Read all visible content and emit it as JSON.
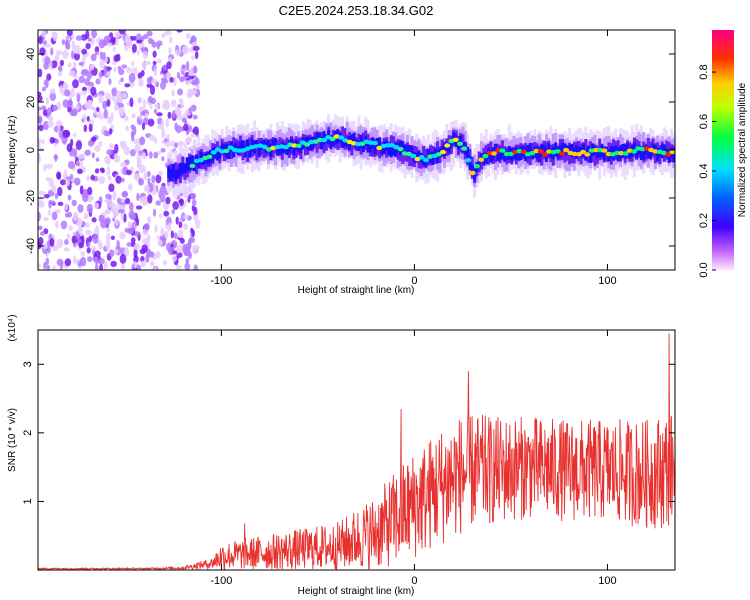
{
  "title": "C2E5.2024.253.18.34.G02",
  "chart_data": [
    {
      "type": "heatmap",
      "xlabel": "Height of straight line (km)",
      "ylabel": "Frequency (Hz)",
      "xlim": [
        -195,
        135
      ],
      "ylim": [
        -50,
        50
      ],
      "xticks": [
        -100,
        0,
        100
      ],
      "yticks": [
        -40,
        -20,
        0,
        20,
        40
      ],
      "colorbar": {
        "label": "Normalized spectral amplitude",
        "ticks": [
          0.0,
          0.2,
          0.4,
          0.6,
          0.8
        ],
        "range": [
          0,
          0.97
        ],
        "colors": [
          "#f0e0ff",
          "#8800ff",
          "#0000ff",
          "#00e0ff",
          "#00ff40",
          "#ffff00",
          "#ff8800",
          "#ff0000",
          "#ff0080"
        ]
      },
      "ridge": {
        "description_free_values": true,
        "x": [
          -125,
          -110,
          -100,
          -80,
          -60,
          -50,
          -40,
          -30,
          -20,
          -10,
          0,
          5,
          10,
          15,
          20,
          25,
          28,
          30,
          35,
          40,
          60,
          80,
          100,
          120,
          135
        ],
        "y": [
          -10,
          -4,
          0,
          1,
          2,
          4,
          5,
          3,
          2,
          1,
          -3,
          -4,
          -2,
          0,
          4,
          2,
          -4,
          -10,
          -3,
          -1,
          -1,
          -1,
          -1,
          0,
          -2
        ]
      }
    },
    {
      "type": "line",
      "xlabel": "Height of straight line (km)",
      "ylabel": "SNR (10 * v/v)",
      "ylabel_multiplier": "(x10⁴)",
      "xlim": [
        -195,
        135
      ],
      "ylim": [
        0,
        3.5
      ],
      "xticks": [
        -100,
        0,
        100
      ],
      "yticks": [
        1,
        2,
        3
      ],
      "line_color": "#e8312f",
      "envelope": {
        "x": [
          -195,
          -140,
          -120,
          -105,
          -100,
          -80,
          -60,
          -40,
          -20,
          -10,
          0,
          10,
          20,
          30,
          40,
          60,
          80,
          100,
          120,
          130,
          135
        ],
        "mean": [
          0.02,
          0.02,
          0.03,
          0.1,
          0.2,
          0.25,
          0.3,
          0.35,
          0.55,
          0.75,
          0.95,
          1.15,
          1.35,
          1.45,
          1.45,
          1.5,
          1.45,
          1.45,
          1.4,
          1.45,
          1.5
        ],
        "amp": [
          0.01,
          0.01,
          0.02,
          0.08,
          0.2,
          0.25,
          0.3,
          0.35,
          0.55,
          0.7,
          0.8,
          0.85,
          0.9,
          0.85,
          0.8,
          0.75,
          0.75,
          0.75,
          0.8,
          0.85,
          0.8
        ]
      },
      "peaks": [
        {
          "x": -88,
          "y": 0.68
        },
        {
          "x": -7,
          "y": 2.35
        },
        {
          "x": 28,
          "y": 2.9
        },
        {
          "x": 132,
          "y": 3.45
        }
      ]
    }
  ]
}
